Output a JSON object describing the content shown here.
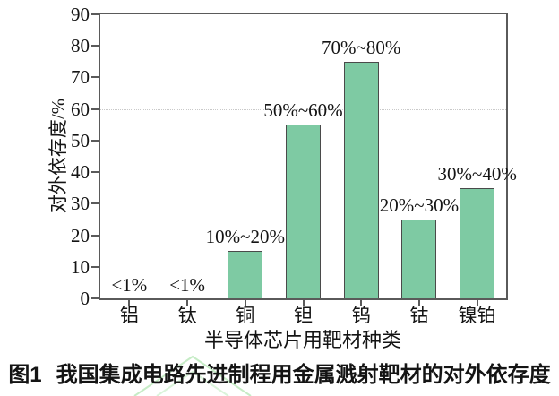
{
  "figure": {
    "caption_label": "图1",
    "caption_text": "我国集成电路先进制程用金属溅射靶材的对外依存度"
  },
  "chart_data": {
    "type": "bar",
    "title": "",
    "categories": [
      "铝",
      "钛",
      "铜",
      "钽",
      "钨",
      "钴",
      "镍铂"
    ],
    "values": [
      0.5,
      0.5,
      15,
      55,
      75,
      25,
      35
    ],
    "bar_labels": [
      "<1%",
      "<1%",
      "10%~20%",
      "50%~60%",
      "70%~80%",
      "20%~30%",
      "30%~40%"
    ],
    "xlabel": "半导体芯片用靶材种类",
    "ylabel": "对外依存度/%",
    "ylim": [
      0,
      90
    ],
    "yticks": [
      0,
      10,
      20,
      30,
      40,
      50,
      60,
      70,
      80,
      90
    ],
    "gridlines_y": [
      60
    ],
    "legend": "none",
    "colors": {
      "bar_fill": "#7ECAA3",
      "bar_border": "#4a4a4a",
      "axis": "#5a5a5a",
      "grid": "#c9c9c9",
      "text": "#141414",
      "watermark": "#c6ecc6"
    }
  }
}
